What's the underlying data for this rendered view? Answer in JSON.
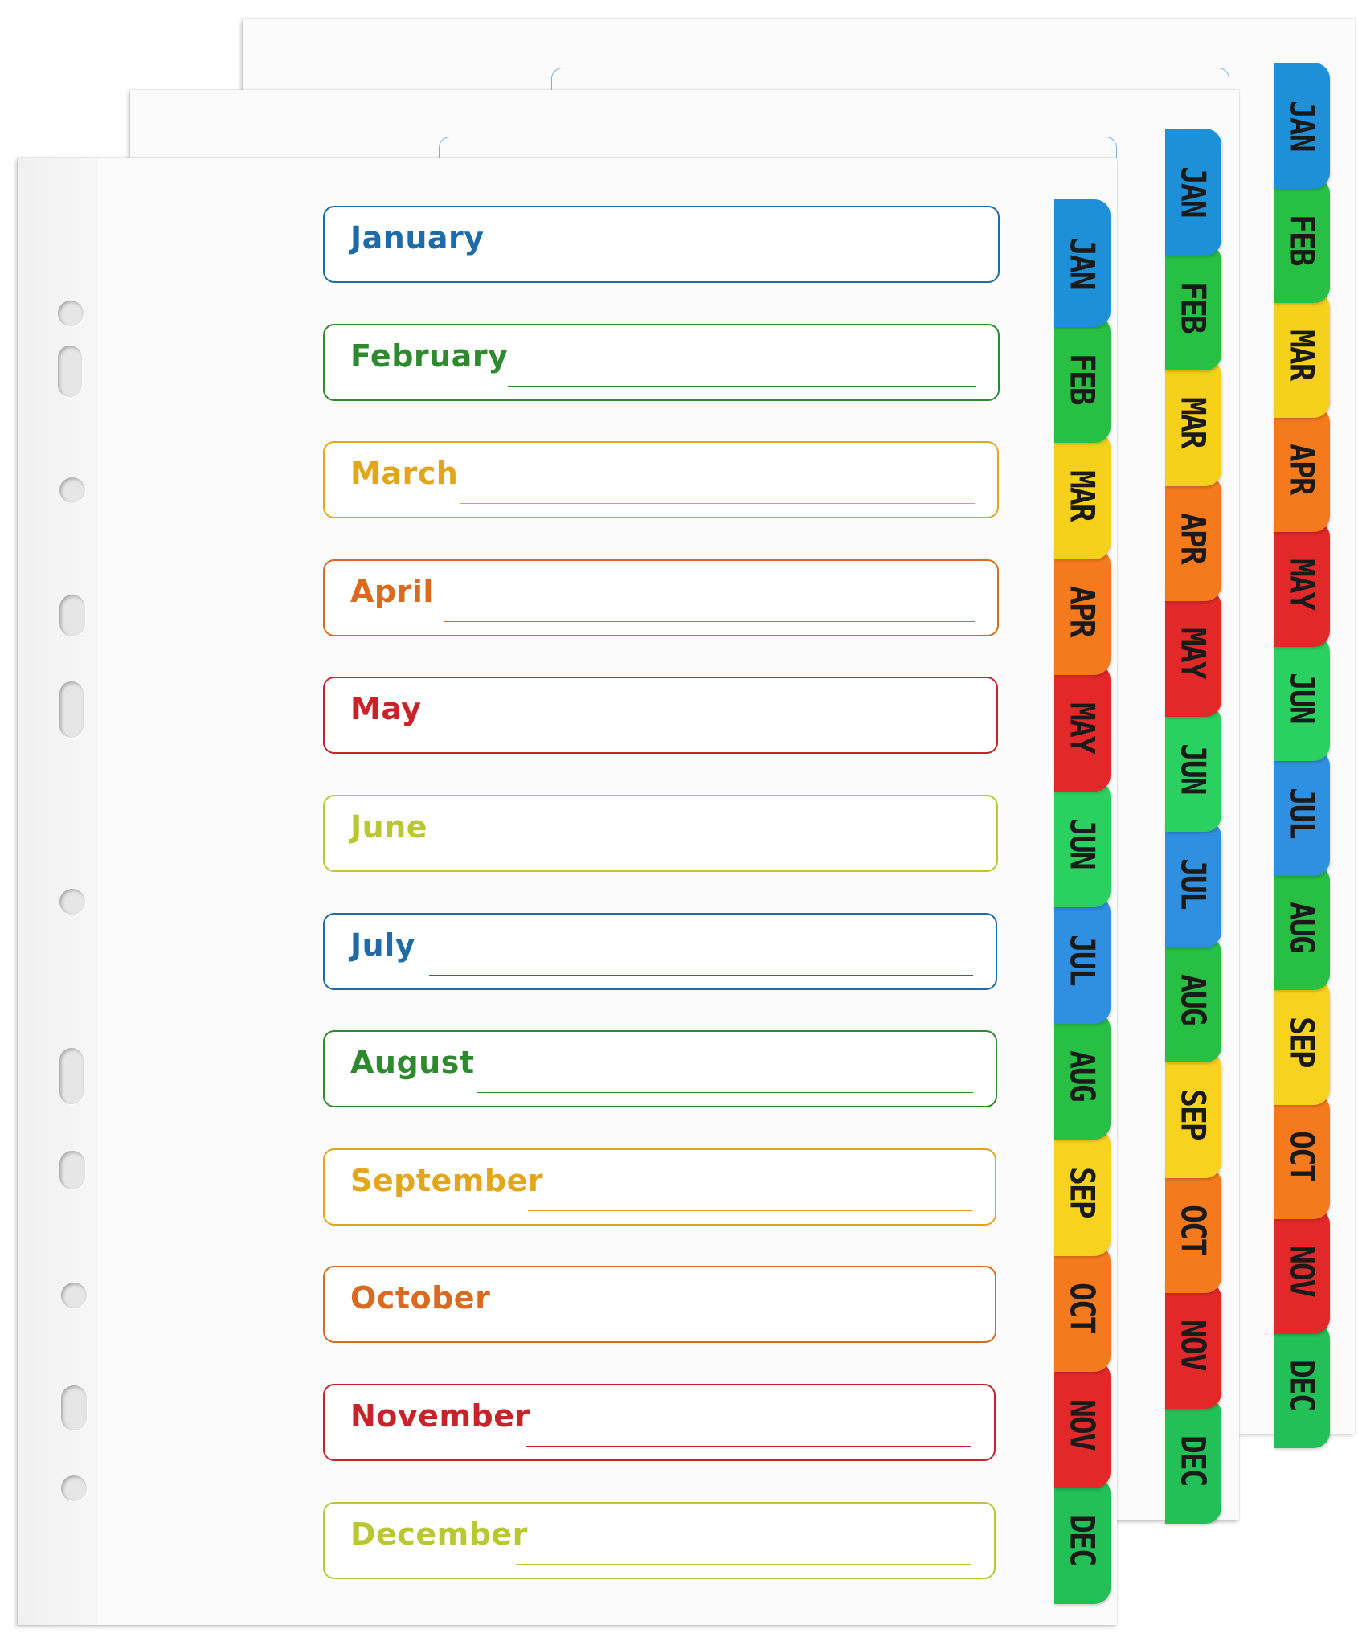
{
  "divider": {
    "months": [
      "January",
      "February",
      "March",
      "April",
      "May",
      "June",
      "July",
      "August",
      "September",
      "October",
      "November",
      "December"
    ],
    "month_colors": [
      "#1f6ba8",
      "#2f8a2f",
      "#e3a61b",
      "#d86b1f",
      "#c8232a",
      "#b9c832",
      "#1f6ba8",
      "#2f8a2f",
      "#e3a61b",
      "#d86b1f",
      "#c8232a",
      "#b9c832"
    ],
    "tabs": [
      {
        "label": "JAN",
        "color": "#1e90d8"
      },
      {
        "label": "FEB",
        "color": "#27c044"
      },
      {
        "label": "MAR",
        "color": "#f5d11c"
      },
      {
        "label": "APR",
        "color": "#f57a1e"
      },
      {
        "label": "MAY",
        "color": "#e3282a"
      },
      {
        "label": "JUN",
        "color": "#2bd160"
      },
      {
        "label": "JUL",
        "color": "#2f8fe0"
      },
      {
        "label": "AUG",
        "color": "#27c044"
      },
      {
        "label": "SEP",
        "color": "#f7d21f"
      },
      {
        "label": "OCT",
        "color": "#f57a1e"
      },
      {
        "label": "NOV",
        "color": "#e3282a"
      },
      {
        "label": "DEC",
        "color": "#22c057"
      }
    ]
  }
}
